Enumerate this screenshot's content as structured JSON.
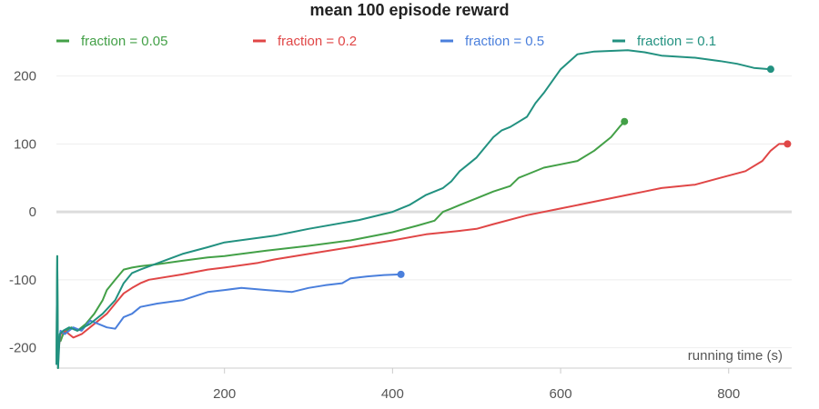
{
  "chart_data": {
    "type": "line",
    "title": "mean 100 episode reward",
    "xlabel": "running time (s)",
    "ylabel": "",
    "xlim": [
      0,
      875
    ],
    "ylim": [
      -230,
      245
    ],
    "xticks": [
      200,
      400,
      600,
      800
    ],
    "yticks": [
      -200,
      -100,
      0,
      100,
      200
    ],
    "grid": true,
    "legend_position": "top",
    "series": [
      {
        "name": "fraction = 0.05",
        "color": "#43a047",
        "x": [
          0,
          1,
          2,
          3,
          5,
          8,
          12,
          18,
          25,
          35,
          45,
          55,
          60,
          70,
          80,
          90,
          100,
          120,
          150,
          180,
          200,
          250,
          300,
          350,
          400,
          430,
          450,
          460,
          470,
          480,
          500,
          520,
          540,
          550,
          560,
          580,
          600,
          620,
          640,
          660,
          670,
          676
        ],
        "y": [
          -225,
          -65,
          -230,
          -185,
          -190,
          -180,
          -175,
          -170,
          -175,
          -165,
          -150,
          -130,
          -115,
          -100,
          -85,
          -82,
          -80,
          -77,
          -72,
          -67,
          -65,
          -57,
          -50,
          -42,
          -30,
          -20,
          -13,
          0,
          5,
          10,
          20,
          30,
          38,
          50,
          55,
          65,
          70,
          75,
          90,
          110,
          125,
          133
        ]
      },
      {
        "name": "fraction = 0.2",
        "color": "#e04646",
        "x": [
          0,
          5,
          10,
          20,
          30,
          40,
          50,
          60,
          70,
          80,
          90,
          100,
          110,
          150,
          180,
          200,
          240,
          260,
          300,
          350,
          400,
          440,
          480,
          500,
          520,
          560,
          600,
          640,
          680,
          700,
          720,
          760,
          790,
          820,
          840,
          850,
          860,
          870
        ],
        "y": [
          -225,
          -180,
          -175,
          -185,
          -180,
          -170,
          -160,
          -150,
          -135,
          -120,
          -112,
          -105,
          -100,
          -92,
          -85,
          -82,
          -75,
          -70,
          -62,
          -52,
          -42,
          -33,
          -28,
          -25,
          -18,
          -5,
          5,
          15,
          25,
          30,
          35,
          40,
          50,
          60,
          75,
          90,
          100,
          100
        ]
      },
      {
        "name": "fraction = 0.5",
        "color": "#4a7fdc",
        "x": [
          0,
          5,
          10,
          20,
          30,
          40,
          50,
          60,
          70,
          80,
          90,
          100,
          120,
          150,
          180,
          200,
          220,
          250,
          280,
          300,
          320,
          340,
          350,
          370,
          390,
          410
        ],
        "y": [
          -225,
          -175,
          -180,
          -170,
          -175,
          -160,
          -165,
          -170,
          -172,
          -155,
          -150,
          -140,
          -135,
          -130,
          -118,
          -115,
          -112,
          -115,
          -118,
          -112,
          -108,
          -105,
          -98,
          -95,
          -93,
          -92
        ]
      },
      {
        "name": "fraction = 0.1",
        "color": "#229180",
        "x": [
          0,
          1,
          2,
          4,
          8,
          15,
          25,
          40,
          55,
          70,
          80,
          90,
          100,
          150,
          180,
          200,
          260,
          300,
          360,
          400,
          420,
          440,
          460,
          470,
          480,
          490,
          500,
          510,
          520,
          530,
          540,
          560,
          570,
          580,
          600,
          620,
          640,
          660,
          680,
          700,
          720,
          760,
          790,
          810,
          830,
          850
        ],
        "y": [
          -225,
          -65,
          -230,
          -180,
          -175,
          -170,
          -175,
          -165,
          -150,
          -130,
          -105,
          -90,
          -85,
          -62,
          -52,
          -45,
          -35,
          -25,
          -12,
          0,
          10,
          25,
          35,
          45,
          60,
          70,
          80,
          95,
          110,
          120,
          125,
          140,
          160,
          175,
          210,
          232,
          236,
          237,
          238,
          235,
          230,
          227,
          222,
          218,
          212,
          210
        ]
      }
    ]
  }
}
